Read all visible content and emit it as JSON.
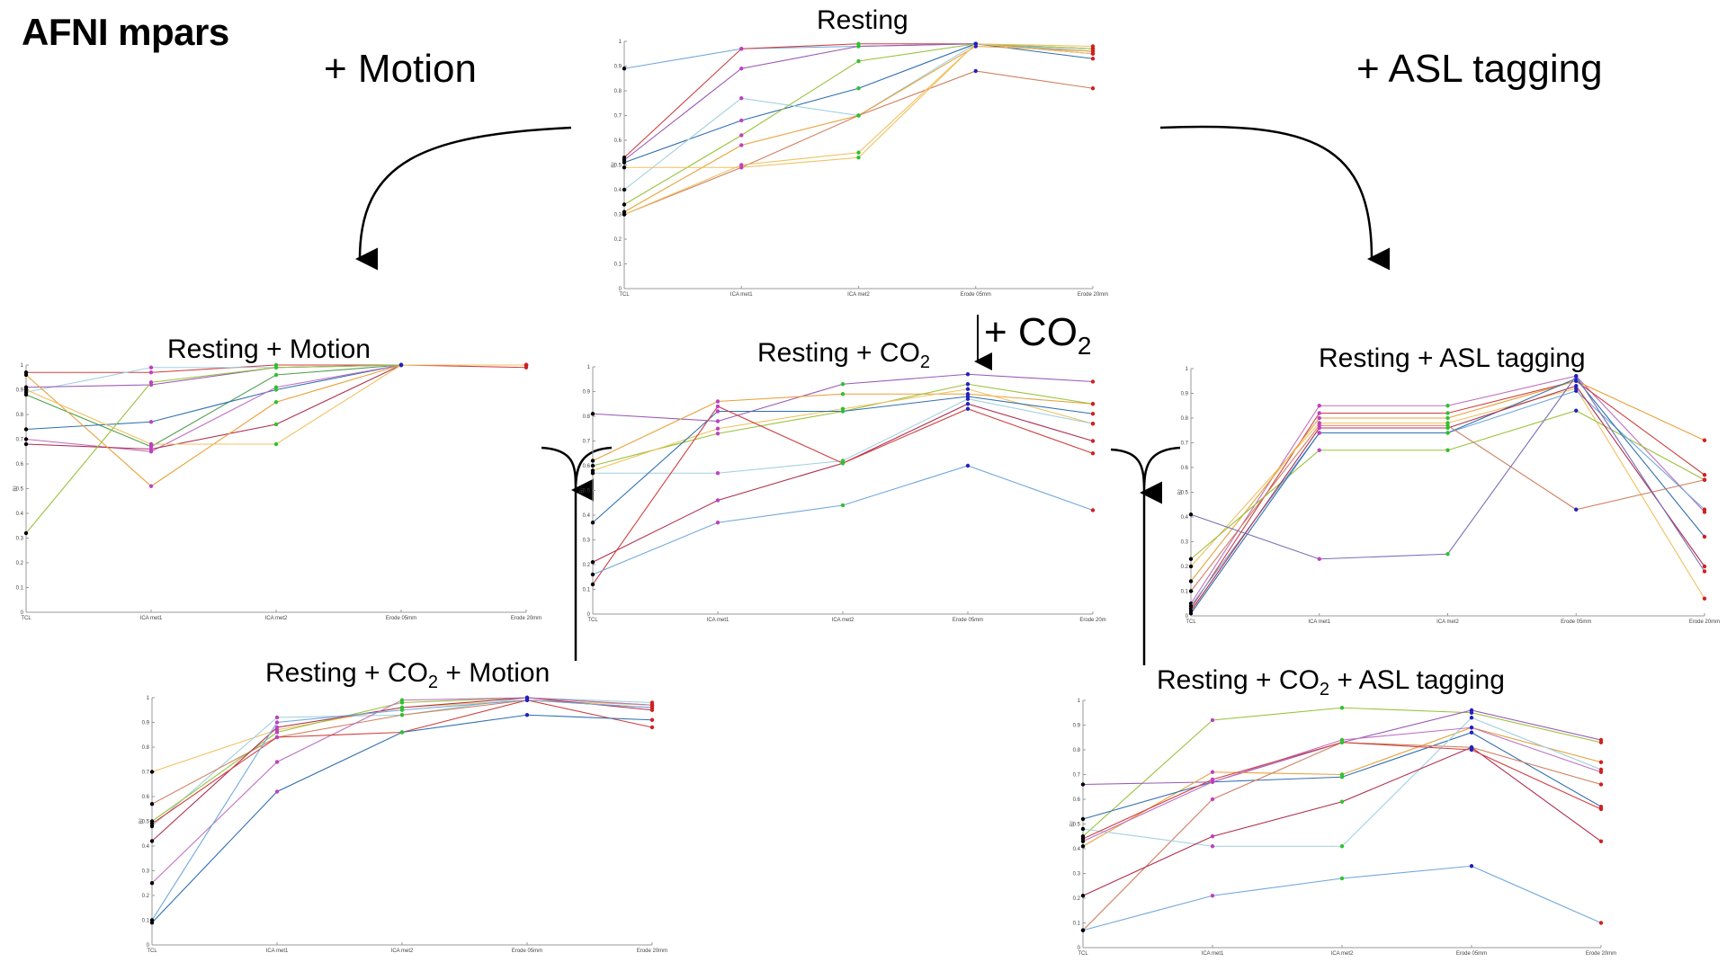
{
  "page_title": "AFNI mpars",
  "transitions": {
    "motion": "+ Motion",
    "asl": "+ ASL tagging",
    "co2": "+ CO",
    "co2_sub": "2"
  },
  "colors": [
    "#e8a23a",
    "#9ac23c",
    "#6fa8dc",
    "#7a6fb5",
    "#b03050",
    "#2f2f2f",
    "#a0d0e0",
    "#d04040",
    "#50a050",
    "#c070c0",
    "#d08040",
    "#3070b0",
    "#f0c060"
  ],
  "chart_data": [
    {
      "id": "resting",
      "type": "line",
      "title": {
        "pre": "Resting",
        "sub": "",
        "post": ""
      },
      "categories": [
        "TCL",
        "ICA met1",
        "ICA met2",
        "Erode 05mm",
        "Erode 20mm"
      ],
      "ylabel": "R²",
      "ylim": [
        0,
        1
      ],
      "yticks": [
        "0",
        "0.1",
        "0.2",
        "0.3",
        "0.4",
        "0.5",
        "0.6",
        "0.7",
        "0.8",
        "0.9",
        "1"
      ],
      "series": [
        {
          "color": "#6fa8dc",
          "values": [
            0.89,
            0.97,
            0.98,
            0.99,
            0.96
          ]
        },
        {
          "color": "#d04040",
          "values": [
            0.53,
            0.97,
            0.99,
            0.99,
            0.97
          ]
        },
        {
          "color": "#9b59b6",
          "values": [
            0.52,
            0.89,
            0.98,
            0.99,
            0.95
          ]
        },
        {
          "color": "#3070b0",
          "values": [
            0.51,
            0.68,
            0.81,
            0.99,
            0.93
          ]
        },
        {
          "color": "#a0d0e0",
          "values": [
            0.4,
            0.77,
            0.7,
            0.99,
            0.97
          ]
        },
        {
          "color": "#9ac23c",
          "values": [
            0.34,
            0.62,
            0.92,
            0.99,
            0.97
          ]
        },
        {
          "color": "#e8a23a",
          "values": [
            0.31,
            0.58,
            0.7,
            0.98,
            0.96
          ]
        },
        {
          "color": "#d08060",
          "values": [
            0.3,
            0.49,
            0.7,
            0.88,
            0.81
          ]
        },
        {
          "color": "#f0c060",
          "values": [
            0.3,
            0.5,
            0.55,
            0.99,
            0.98
          ]
        },
        {
          "color": "#f0c060",
          "values": [
            0.49,
            0.49,
            0.53,
            0.99,
            0.95
          ]
        }
      ]
    },
    {
      "id": "resting-motion",
      "type": "line",
      "title": {
        "pre": "Resting + Motion",
        "sub": "",
        "post": ""
      },
      "categories": [
        "TCL",
        "ICA met1",
        "ICA met2",
        "Erode 05mm",
        "Erode 20mm"
      ],
      "ylabel": "R²",
      "ylim": [
        0,
        1
      ],
      "yticks": [
        "0",
        "0.1",
        "0.2",
        "0.3",
        "0.4",
        "0.5",
        "0.6",
        "0.7",
        "0.8",
        "0.9",
        "1"
      ],
      "series": [
        {
          "color": "#d04040",
          "values": [
            0.97,
            0.97,
            1.0,
            1.0,
            0.99
          ]
        },
        {
          "color": "#a0d0e0",
          "values": [
            0.89,
            0.99,
            0.99,
            1.0,
            1.0
          ]
        },
        {
          "color": "#9b59b6",
          "values": [
            0.91,
            0.92,
            0.99,
            1.0,
            1.0
          ]
        },
        {
          "color": "#50a050",
          "values": [
            0.88,
            0.67,
            0.96,
            1.0,
            1.0
          ]
        },
        {
          "color": "#3070b0",
          "values": [
            0.74,
            0.77,
            0.9,
            1.0,
            1.0
          ]
        },
        {
          "color": "#c070c0",
          "values": [
            0.7,
            0.65,
            0.91,
            1.0,
            1.0
          ]
        },
        {
          "color": "#b03050",
          "values": [
            0.68,
            0.66,
            0.76,
            1.0,
            1.0
          ]
        },
        {
          "color": "#9ac23c",
          "values": [
            0.32,
            0.93,
            0.99,
            1.0,
            1.0
          ]
        },
        {
          "color": "#e8a23a",
          "values": [
            0.96,
            0.51,
            0.85,
            1.0,
            1.0
          ]
        },
        {
          "color": "#f0c060",
          "values": [
            0.9,
            0.68,
            0.68,
            1.0,
            1.0
          ]
        }
      ]
    },
    {
      "id": "resting-co2",
      "type": "line",
      "title": {
        "pre": "Resting + CO",
        "sub": "2",
        "post": ""
      },
      "categories": [
        "TCL",
        "ICA met1",
        "ICA met2",
        "Erode 05mm",
        "Erode 20m"
      ],
      "ylabel": "R²",
      "ylim": [
        0,
        1
      ],
      "yticks": [
        "0",
        "0.1",
        "0.2",
        "0.3",
        "0.4",
        "0.5",
        "0.6",
        "0.7",
        "0.8",
        "0.9",
        "1"
      ],
      "series": [
        {
          "color": "#9b59b6",
          "values": [
            0.81,
            0.78,
            0.93,
            0.97,
            0.94
          ]
        },
        {
          "color": "#e8a23a",
          "values": [
            0.62,
            0.86,
            0.89,
            0.89,
            0.85
          ]
        },
        {
          "color": "#9ac23c",
          "values": [
            0.6,
            0.73,
            0.82,
            0.93,
            0.85
          ]
        },
        {
          "color": "#f0c060",
          "values": [
            0.58,
            0.75,
            0.83,
            0.91,
            0.77
          ]
        },
        {
          "color": "#a0d0e0",
          "values": [
            0.57,
            0.57,
            0.62,
            0.87,
            0.77
          ]
        },
        {
          "color": "#3070b0",
          "values": [
            0.37,
            0.82,
            0.82,
            0.88,
            0.81
          ]
        },
        {
          "color": "#b03050",
          "values": [
            0.21,
            0.46,
            0.61,
            0.85,
            0.7
          ]
        },
        {
          "color": "#d04040",
          "values": [
            0.12,
            0.84,
            0.61,
            0.83,
            0.65
          ]
        },
        {
          "color": "#6fa8dc",
          "values": [
            0.16,
            0.37,
            0.44,
            0.6,
            0.42
          ]
        }
      ]
    },
    {
      "id": "resting-asl",
      "type": "line",
      "title": {
        "pre": "Resting + ASL tagging",
        "sub": "",
        "post": ""
      },
      "categories": [
        "TCL",
        "ICA met1",
        "ICA met2",
        "Erode 05mm",
        "Erode 20mm"
      ],
      "ylabel": "R²",
      "ylim": [
        0,
        1
      ],
      "yticks": [
        "0",
        "0.1",
        "0.2",
        "0.3",
        "0.4",
        "0.5",
        "0.6",
        "0.7",
        "0.8",
        "0.9",
        "1"
      ],
      "series": [
        {
          "color": "#c070c0",
          "values": [
            0.05,
            0.85,
            0.85,
            0.97,
            0.42
          ]
        },
        {
          "color": "#d04040",
          "values": [
            0.03,
            0.82,
            0.82,
            0.95,
            0.57
          ]
        },
        {
          "color": "#e8a23a",
          "values": [
            0.14,
            0.8,
            0.8,
            0.95,
            0.71
          ]
        },
        {
          "color": "#f0c060",
          "values": [
            0.2,
            0.78,
            0.78,
            0.92,
            0.07
          ]
        },
        {
          "color": "#9ac23c",
          "values": [
            0.23,
            0.67,
            0.67,
            0.83,
            0.55
          ]
        },
        {
          "color": "#6fa8dc",
          "values": [
            0.04,
            0.74,
            0.74,
            0.91,
            0.43
          ]
        },
        {
          "color": "#3070b0",
          "values": [
            0.01,
            0.74,
            0.74,
            0.96,
            0.32
          ]
        },
        {
          "color": "#b03050",
          "values": [
            0.02,
            0.76,
            0.76,
            0.93,
            0.2
          ]
        },
        {
          "color": "#d08060",
          "values": [
            0.1,
            0.77,
            0.77,
            0.43,
            0.55
          ]
        },
        {
          "color": "#7a6fb5",
          "values": [
            0.41,
            0.23,
            0.25,
            0.97,
            0.18
          ]
        }
      ]
    },
    {
      "id": "resting-co2-motion",
      "type": "line",
      "title": {
        "pre": "Resting + CO",
        "sub": "2",
        "post": " + Motion"
      },
      "categories": [
        "TCL",
        "ICA met1",
        "ICA met2",
        "Erode 05mm",
        "Erode 20mm"
      ],
      "ylabel": "R²",
      "ylim": [
        0,
        1
      ],
      "yticks": [
        "0",
        "0.1",
        "0.2",
        "0.3",
        "0.4",
        "0.5",
        "0.6",
        "0.7",
        "0.8",
        "0.9",
        "1"
      ],
      "series": [
        {
          "color": "#f0c060",
          "values": [
            0.7,
            0.87,
            0.96,
            0.99,
            0.97
          ]
        },
        {
          "color": "#a0d0e0",
          "values": [
            0.48,
            0.92,
            0.93,
            1.0,
            0.98
          ]
        },
        {
          "color": "#d08060",
          "values": [
            0.57,
            0.84,
            0.93,
            0.99,
            0.96
          ]
        },
        {
          "color": "#9ac23c",
          "values": [
            0.5,
            0.86,
            0.98,
            1.0,
            0.97
          ]
        },
        {
          "color": "#b03050",
          "values": [
            0.42,
            0.88,
            0.96,
            1.0,
            0.95
          ]
        },
        {
          "color": "#c070c0",
          "values": [
            0.25,
            0.74,
            0.99,
            1.0,
            0.97
          ]
        },
        {
          "color": "#d04040",
          "values": [
            0.49,
            0.84,
            0.86,
            0.99,
            0.88
          ]
        },
        {
          "color": "#3070b0",
          "values": [
            0.09,
            0.62,
            0.86,
            0.93,
            0.91
          ]
        },
        {
          "color": "#6fa8dc",
          "values": [
            0.1,
            0.9,
            0.95,
            0.99,
            0.96
          ]
        }
      ]
    },
    {
      "id": "resting-co2-asl",
      "type": "line",
      "title": {
        "pre": "Resting + CO",
        "sub": "2",
        "post": "  + ASL tagging"
      },
      "categories": [
        "TCL",
        "ICA met1",
        "ICA met2",
        "Erode 05mm",
        "Erode 20mm"
      ],
      "ylabel": "R²",
      "ylim": [
        0,
        1
      ],
      "yticks": [
        "0",
        "0.1",
        "0.2",
        "0.3",
        "0.4",
        "0.5",
        "0.6",
        "0.7",
        "0.8",
        "0.9",
        "1"
      ],
      "series": [
        {
          "color": "#9ac23c",
          "values": [
            0.45,
            0.92,
            0.97,
            0.95,
            0.83
          ]
        },
        {
          "color": "#9b59b6",
          "values": [
            0.66,
            0.67,
            0.83,
            0.96,
            0.84
          ]
        },
        {
          "color": "#e8a23a",
          "values": [
            0.41,
            0.71,
            0.7,
            0.89,
            0.75
          ]
        },
        {
          "color": "#3070b0",
          "values": [
            0.52,
            0.67,
            0.69,
            0.87,
            0.57
          ]
        },
        {
          "color": "#d08060",
          "values": [
            0.07,
            0.6,
            0.83,
            0.81,
            0.66
          ]
        },
        {
          "color": "#a0d0e0",
          "values": [
            0.48,
            0.41,
            0.41,
            0.93,
            0.72
          ]
        },
        {
          "color": "#b03050",
          "values": [
            0.21,
            0.45,
            0.59,
            0.81,
            0.43
          ]
        },
        {
          "color": "#c070c0",
          "values": [
            0.43,
            0.67,
            0.84,
            0.89,
            0.71
          ]
        },
        {
          "color": "#d04040",
          "values": [
            0.44,
            0.68,
            0.83,
            0.8,
            0.56
          ]
        },
        {
          "color": "#6fa8dc",
          "values": [
            0.07,
            0.21,
            0.28,
            0.33,
            0.1
          ]
        }
      ]
    }
  ]
}
